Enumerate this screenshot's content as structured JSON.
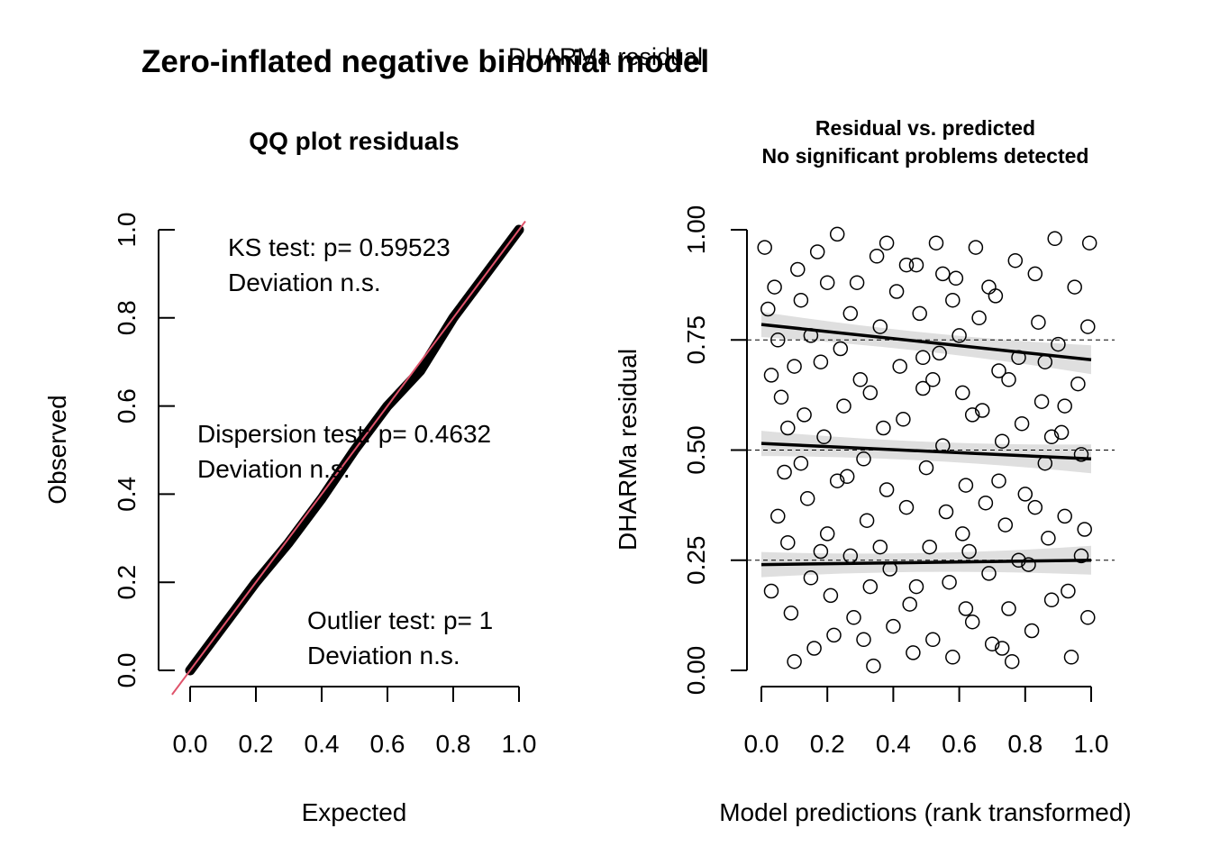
{
  "overlay_title": "DHARMa residual",
  "main_title": "Zero-inflated negative binomial model",
  "colors": {
    "reference_line": "#DF536B",
    "points": "#000000",
    "band": "#d9d9d9"
  },
  "chart_data": [
    {
      "type": "scatter",
      "title": "QQ plot residuals",
      "xlabel": "Expected",
      "ylabel": "Observed",
      "xlim": [
        0,
        1
      ],
      "ylim": [
        0,
        1
      ],
      "xticks": [
        "0.0",
        "0.2",
        "0.4",
        "0.6",
        "0.8",
        "1.0"
      ],
      "yticks": [
        "0.0",
        "0.2",
        "0.4",
        "0.6",
        "0.8",
        "1.0"
      ],
      "reference_line": {
        "from": [
          0,
          0
        ],
        "to": [
          1,
          1
        ]
      },
      "observed_vs_expected": [
        [
          0,
          0
        ],
        [
          0.1,
          0.1
        ],
        [
          0.2,
          0.2
        ],
        [
          0.3,
          0.29
        ],
        [
          0.4,
          0.39
        ],
        [
          0.5,
          0.5
        ],
        [
          0.6,
          0.6
        ],
        [
          0.7,
          0.68
        ],
        [
          0.8,
          0.8
        ],
        [
          0.9,
          0.9
        ],
        [
          1.0,
          1.0
        ]
      ],
      "annotations": [
        {
          "lines": [
            "KS test: p= 0.59523",
            "Deviation  n.s."
          ]
        },
        {
          "lines": [
            "Dispersion test: p= 0.4632",
            "Deviation  n.s."
          ]
        },
        {
          "lines": [
            "Outlier test: p= 1",
            "Deviation  n.s."
          ]
        }
      ]
    },
    {
      "type": "scatter",
      "title": "Residual vs. predicted",
      "subtitle": "No significant problems detected",
      "xlabel": "Model predictions (rank transformed)",
      "ylabel": "DHARMa residual",
      "xlim": [
        0,
        1
      ],
      "ylim": [
        0,
        1
      ],
      "xticks": [
        "0.0",
        "0.2",
        "0.4",
        "0.6",
        "0.8",
        "1.0"
      ],
      "yticks": [
        "0.00",
        "0.25",
        "0.50",
        "0.75",
        "1.00"
      ],
      "reference_lines_y": [
        0.25,
        0.5,
        0.75
      ],
      "quantile_fits": [
        {
          "quantile": 0.25,
          "y_at_0": 0.24,
          "y_at_1": 0.25
        },
        {
          "quantile": 0.5,
          "y_at_0": 0.515,
          "y_at_1": 0.48
        },
        {
          "quantile": 0.75,
          "y_at_0": 0.785,
          "y_at_1": 0.705
        }
      ],
      "points": [
        [
          0.01,
          0.96
        ],
        [
          0.02,
          0.82
        ],
        [
          0.03,
          0.67
        ],
        [
          0.04,
          0.87
        ],
        [
          0.05,
          0.75
        ],
        [
          0.06,
          0.62
        ],
        [
          0.07,
          0.45
        ],
        [
          0.08,
          0.29
        ],
        [
          0.09,
          0.13
        ],
        [
          0.1,
          0.02
        ],
        [
          0.11,
          0.91
        ],
        [
          0.12,
          0.84
        ],
        [
          0.13,
          0.58
        ],
        [
          0.14,
          0.39
        ],
        [
          0.15,
          0.21
        ],
        [
          0.16,
          0.05
        ],
        [
          0.17,
          0.95
        ],
        [
          0.18,
          0.7
        ],
        [
          0.19,
          0.53
        ],
        [
          0.2,
          0.31
        ],
        [
          0.21,
          0.17
        ],
        [
          0.22,
          0.08
        ],
        [
          0.23,
          0.99
        ],
        [
          0.24,
          0.73
        ],
        [
          0.25,
          0.6
        ],
        [
          0.26,
          0.44
        ],
        [
          0.27,
          0.26
        ],
        [
          0.28,
          0.12
        ],
        [
          0.29,
          0.88
        ],
        [
          0.3,
          0.66
        ],
        [
          0.31,
          0.48
        ],
        [
          0.32,
          0.34
        ],
        [
          0.33,
          0.19
        ],
        [
          0.34,
          0.01
        ],
        [
          0.35,
          0.94
        ],
        [
          0.36,
          0.78
        ],
        [
          0.37,
          0.55
        ],
        [
          0.38,
          0.41
        ],
        [
          0.39,
          0.23
        ],
        [
          0.4,
          0.1
        ],
        [
          0.41,
          0.86
        ],
        [
          0.42,
          0.69
        ],
        [
          0.43,
          0.57
        ],
        [
          0.44,
          0.37
        ],
        [
          0.45,
          0.15
        ],
        [
          0.46,
          0.04
        ],
        [
          0.47,
          0.92
        ],
        [
          0.48,
          0.81
        ],
        [
          0.49,
          0.64
        ],
        [
          0.5,
          0.46
        ],
        [
          0.51,
          0.28
        ],
        [
          0.52,
          0.07
        ],
        [
          0.53,
          0.97
        ],
        [
          0.54,
          0.72
        ],
        [
          0.55,
          0.51
        ],
        [
          0.56,
          0.36
        ],
        [
          0.57,
          0.2
        ],
        [
          0.58,
          0.03
        ],
        [
          0.59,
          0.89
        ],
        [
          0.6,
          0.76
        ],
        [
          0.61,
          0.63
        ],
        [
          0.62,
          0.42
        ],
        [
          0.63,
          0.27
        ],
        [
          0.64,
          0.11
        ],
        [
          0.65,
          0.96
        ],
        [
          0.66,
          0.8
        ],
        [
          0.67,
          0.59
        ],
        [
          0.68,
          0.38
        ],
        [
          0.69,
          0.22
        ],
        [
          0.7,
          0.06
        ],
        [
          0.71,
          0.85
        ],
        [
          0.72,
          0.68
        ],
        [
          0.73,
          0.52
        ],
        [
          0.74,
          0.33
        ],
        [
          0.75,
          0.14
        ],
        [
          0.76,
          0.02
        ],
        [
          0.77,
          0.93
        ],
        [
          0.78,
          0.71
        ],
        [
          0.79,
          0.56
        ],
        [
          0.8,
          0.4
        ],
        [
          0.81,
          0.24
        ],
        [
          0.82,
          0.09
        ],
        [
          0.83,
          0.9
        ],
        [
          0.84,
          0.79
        ],
        [
          0.85,
          0.61
        ],
        [
          0.86,
          0.47
        ],
        [
          0.87,
          0.3
        ],
        [
          0.88,
          0.16
        ],
        [
          0.89,
          0.98
        ],
        [
          0.9,
          0.74
        ],
        [
          0.91,
          0.54
        ],
        [
          0.92,
          0.35
        ],
        [
          0.93,
          0.18
        ],
        [
          0.94,
          0.03
        ],
        [
          0.95,
          0.87
        ],
        [
          0.96,
          0.65
        ],
        [
          0.97,
          0.49
        ],
        [
          0.98,
          0.32
        ],
        [
          0.99,
          0.12
        ],
        [
          0.995,
          0.97
        ],
        [
          0.05,
          0.35
        ],
        [
          0.12,
          0.47
        ],
        [
          0.18,
          0.27
        ],
        [
          0.27,
          0.81
        ],
        [
          0.33,
          0.63
        ],
        [
          0.44,
          0.92
        ],
        [
          0.52,
          0.66
        ],
        [
          0.58,
          0.84
        ],
        [
          0.64,
          0.58
        ],
        [
          0.72,
          0.43
        ],
        [
          0.78,
          0.25
        ],
        [
          0.86,
          0.7
        ],
        [
          0.92,
          0.6
        ],
        [
          0.08,
          0.55
        ],
        [
          0.15,
          0.76
        ],
        [
          0.23,
          0.43
        ],
        [
          0.31,
          0.07
        ],
        [
          0.38,
          0.97
        ],
        [
          0.47,
          0.19
        ],
        [
          0.55,
          0.9
        ],
        [
          0.62,
          0.14
        ],
        [
          0.69,
          0.87
        ],
        [
          0.75,
          0.66
        ],
        [
          0.83,
          0.37
        ],
        [
          0.97,
          0.26
        ],
        [
          0.03,
          0.18
        ],
        [
          0.1,
          0.69
        ],
        [
          0.2,
          0.88
        ],
        [
          0.36,
          0.28
        ],
        [
          0.49,
          0.71
        ],
        [
          0.61,
          0.31
        ],
        [
          0.73,
          0.05
        ],
        [
          0.88,
          0.53
        ],
        [
          0.99,
          0.78
        ]
      ]
    }
  ]
}
